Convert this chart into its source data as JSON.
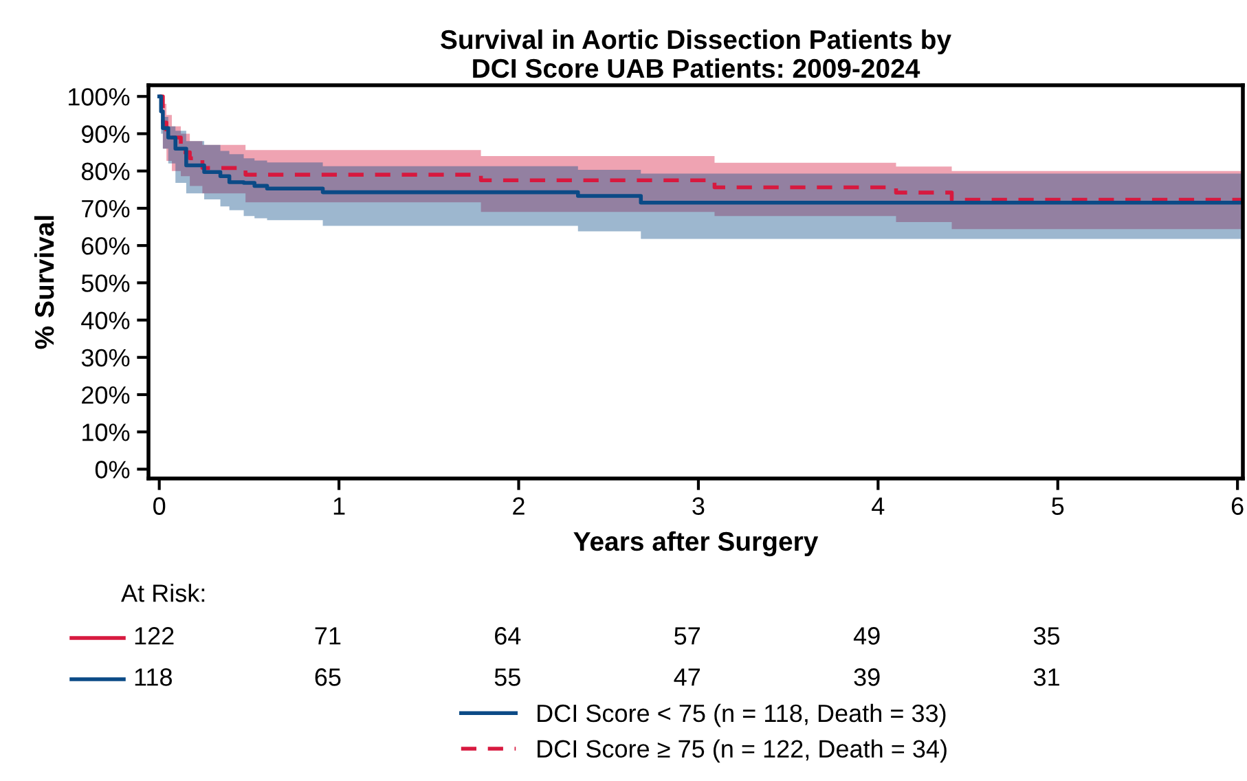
{
  "chart_data": {
    "type": "step",
    "title": "Survival in Aortic Dissection Patients by\nDCI Score UAB Patients: 2009-2024",
    "xlabel": "Years after Surgery",
    "ylabel": "% Survival",
    "series": [
      {
        "name": "DCI Score ≥ 75 (n = 122, Death = 34)",
        "color": "#d7193f",
        "line_style": "dashed",
        "x": [
          0,
          0.02,
          0.04,
          0.07,
          0.12,
          0.17,
          0.24,
          0.48,
          1.79,
          3.09,
          4.1,
          4.41,
          6.03
        ],
        "values": [
          100,
          93,
          90,
          89,
          85,
          83.4,
          80.8,
          79,
          77.5,
          75.6,
          74.2,
          72.3,
          72.3
        ],
        "upper": [
          100,
          98,
          95,
          92,
          90,
          88,
          87,
          85.6,
          84,
          82.2,
          81.2,
          80,
          80
        ],
        "lower": [
          100,
          86,
          82.7,
          80,
          78.6,
          76,
          74,
          71.6,
          69,
          67.9,
          66.3,
          64.4,
          64.4
        ]
      },
      {
        "name": "DCI Score < 75 (n = 118, Death = 33)",
        "color": "#0b4a86",
        "line_style": "solid",
        "x": [
          0,
          0.01,
          0.02,
          0.05,
          0.09,
          0.15,
          0.25,
          0.34,
          0.39,
          0.47,
          0.53,
          0.6,
          0.91,
          2.33,
          2.68,
          6.03
        ],
        "values": [
          100,
          96,
          91.5,
          89,
          86,
          81.5,
          79.7,
          78.6,
          77,
          76.8,
          76,
          75.3,
          74.3,
          73.3,
          71.5,
          71.5
        ],
        "upper": [
          100,
          99,
          94.5,
          92,
          90.8,
          88,
          87,
          85.4,
          84.5,
          83.4,
          82.8,
          82.3,
          81.3,
          80.3,
          79.3,
          79.3
        ],
        "lower": [
          100,
          90,
          86,
          82,
          76.8,
          74,
          72.4,
          70.5,
          69.5,
          67.9,
          67.3,
          66.8,
          65.3,
          63.8,
          61.8,
          61.8
        ]
      }
    ],
    "xlim": [
      -0.06,
      6.03
    ],
    "xticks": [
      0,
      1,
      2,
      3,
      4,
      5,
      6
    ],
    "ylim": [
      -2.5,
      103
    ],
    "yticks": [
      {
        "value": 0,
        "label": "0%"
      },
      {
        "value": 10,
        "label": "10%"
      },
      {
        "value": 20,
        "label": "20%"
      },
      {
        "value": 30,
        "label": "30%"
      },
      {
        "value": 40,
        "label": "40%"
      },
      {
        "value": 50,
        "label": "50%"
      },
      {
        "value": 60,
        "label": "60%"
      },
      {
        "value": 70,
        "label": "70%"
      },
      {
        "value": 80,
        "label": "80%"
      },
      {
        "value": 90,
        "label": "90%"
      },
      {
        "value": 100,
        "label": "100%"
      }
    ],
    "annotations": [
      "At Risk:",
      "122",
      "71",
      "64",
      "57",
      "49",
      "35",
      "118",
      "65",
      "55",
      "47",
      "39",
      "31"
    ],
    "grid": false,
    "legend": "bottom"
  }
}
